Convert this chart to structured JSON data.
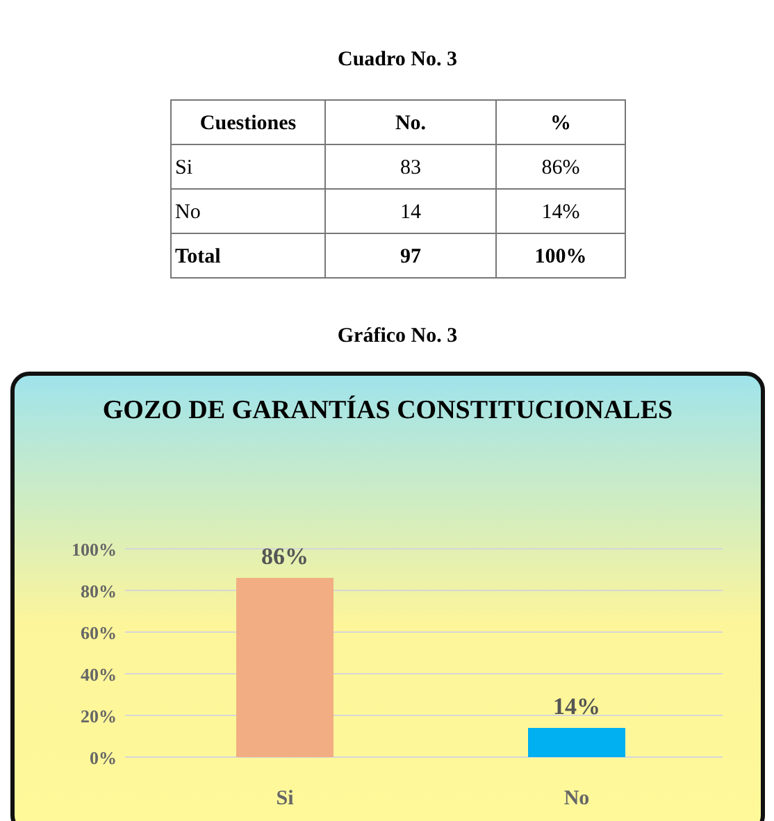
{
  "chart_data": [
    {
      "type": "other",
      "title": "Cuadro No. 3",
      "annotations": [
        "Cuestiones",
        "No.",
        "%",
        "Si",
        "83",
        "86%",
        "No",
        "14",
        "14%",
        "Total",
        "97",
        "100%"
      ]
    },
    {
      "type": "bar",
      "title": "GOZO DE GARANTÍAS CONSTITUCIONALES",
      "annotations": [
        "Gráfico No. 3"
      ],
      "categories": [
        "Si",
        "No"
      ],
      "values": [
        86,
        14
      ],
      "colors": [
        "#f2ad82",
        "#00b0f0"
      ],
      "value_labels": [
        "86%",
        "14%"
      ],
      "ylim": [
        0,
        100
      ],
      "yticks": [
        {
          "value": 0,
          "label": "0%"
        },
        {
          "value": 20,
          "label": "20%"
        },
        {
          "value": 40,
          "label": "40%"
        },
        {
          "value": 60,
          "label": "60%"
        },
        {
          "value": 80,
          "label": "80%"
        },
        {
          "value": 100,
          "label": "100%"
        }
      ],
      "grid": true
    }
  ]
}
